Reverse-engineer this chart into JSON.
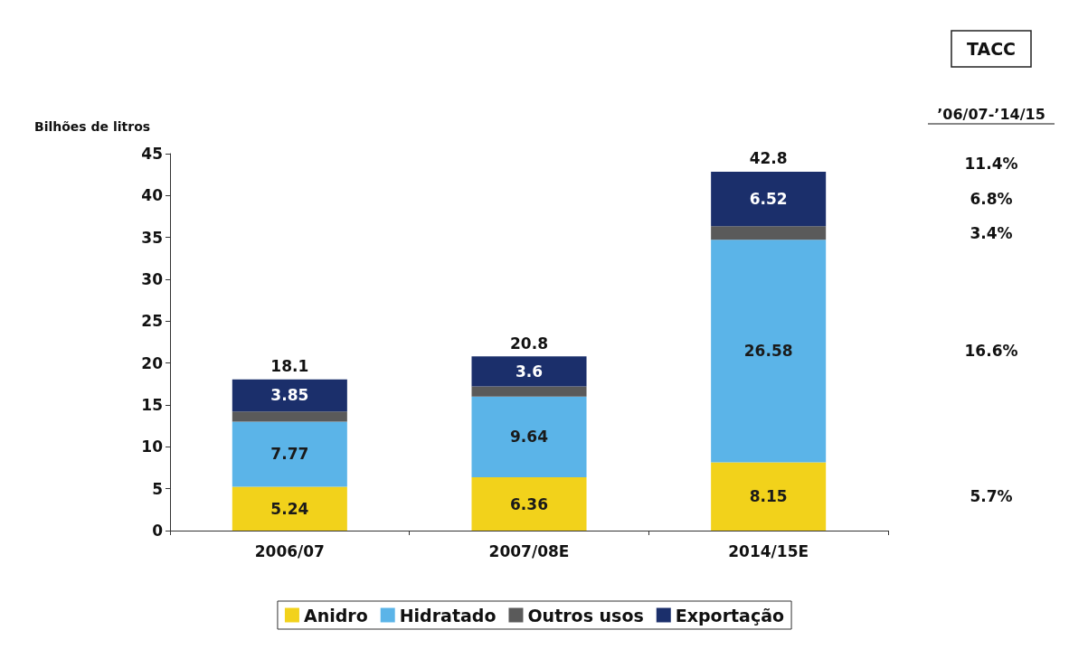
{
  "chart_data": {
    "type": "bar",
    "stacked": true,
    "ylabel": "Bilhões de litros",
    "categories": [
      "2006/07",
      "2007/08E",
      "2014/15E"
    ],
    "series": [
      {
        "name": "Anidro",
        "color": "#f2d21b",
        "values": [
          5.24,
          6.36,
          8.15
        ],
        "value_labels": [
          "5.24",
          "6.36",
          "8.15"
        ]
      },
      {
        "name": "Hidratado",
        "color": "#5bb4e8",
        "values": [
          7.77,
          9.64,
          26.58
        ],
        "value_labels": [
          "7.77",
          "9.64",
          "26.58"
        ]
      },
      {
        "name": "Outros usos",
        "color": "#5a5a5a",
        "values": [
          1.2,
          1.2,
          1.6
        ]
      },
      {
        "name": "Exportação",
        "color": "#1b2f6b",
        "values": [
          3.85,
          3.6,
          6.52
        ],
        "value_labels": [
          "3.85",
          "3.6",
          "6.52"
        ]
      }
    ],
    "totals": [
      "18.1",
      "20.8",
      "42.8"
    ],
    "ylim": [
      0,
      45
    ],
    "yticks": [
      0,
      5,
      10,
      15,
      20,
      25,
      30,
      35,
      40,
      45
    ],
    "grid": false,
    "legend": "bottom",
    "annotations": [
      "TACC",
      "’06/07-’14/15",
      "11.4%",
      "6.8%",
      "3.4%",
      "16.6%",
      "5.7%"
    ]
  }
}
